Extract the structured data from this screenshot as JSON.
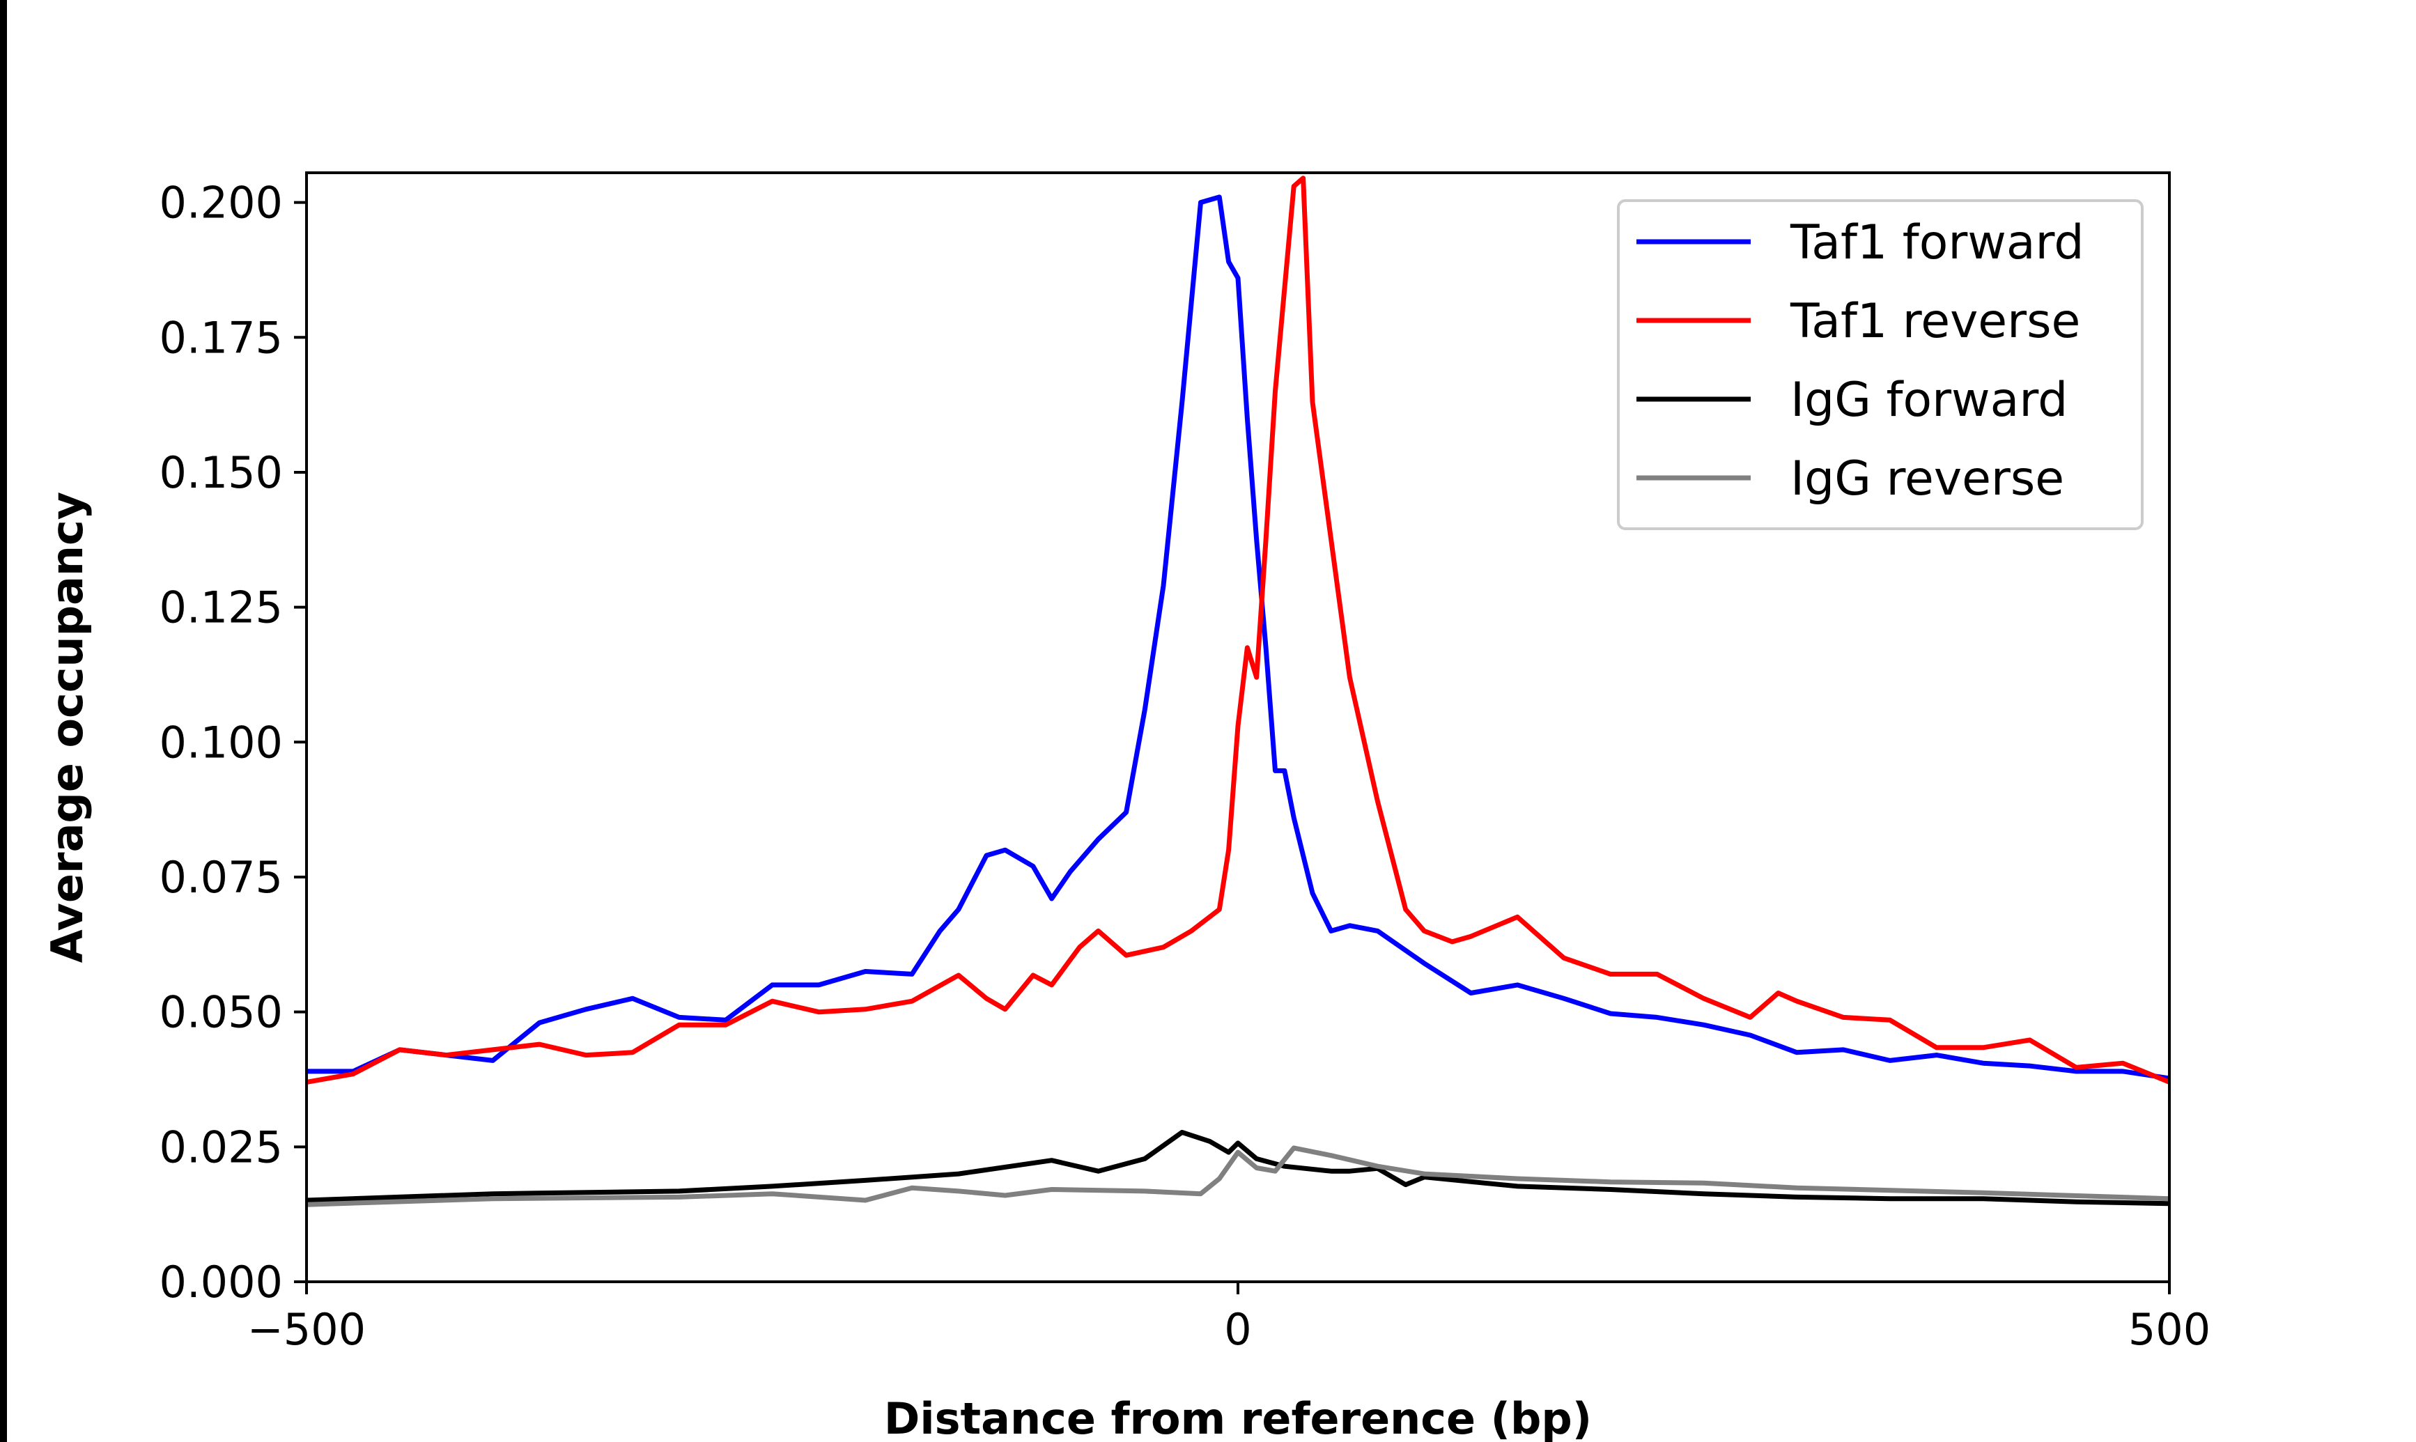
{
  "chart_data": {
    "type": "line",
    "title": "",
    "xlabel": "Distance from reference (bp)",
    "ylabel": "Average occupancy",
    "xlim": [
      -500,
      500
    ],
    "ylim": [
      0,
      0.2055
    ],
    "xticks": [
      -500,
      0,
      500
    ],
    "xtick_labels": [
      "−500",
      "0",
      "500"
    ],
    "yticks": [
      0,
      0.025,
      0.05,
      0.075,
      0.1,
      0.125,
      0.15,
      0.175,
      0.2
    ],
    "ytick_labels": [
      "0.000",
      "0.025",
      "0.050",
      "0.075",
      "0.100",
      "0.125",
      "0.150",
      "0.175",
      "0.200"
    ],
    "grid": false,
    "legend_position": "top-right",
    "series": [
      {
        "name": "Taf1 forward",
        "color": "#0000ff",
        "x": [
          -500,
          -475,
          -450,
          -425,
          -400,
          -375,
          -350,
          -325,
          -300,
          -275,
          -250,
          -225,
          -200,
          -175,
          -160,
          -150,
          -135,
          -125,
          -110,
          -100,
          -90,
          -75,
          -60,
          -50,
          -40,
          -30,
          -20,
          -10,
          -5,
          0,
          5,
          10,
          15,
          20,
          25,
          30,
          40,
          50,
          60,
          75,
          100,
          125,
          150,
          175,
          200,
          225,
          250,
          275,
          300,
          325,
          350,
          375,
          400,
          425,
          450,
          475,
          500
        ],
        "y": [
          0.039,
          0.039,
          0.043,
          0.042,
          0.041,
          0.048,
          0.0505,
          0.0525,
          0.049,
          0.0485,
          0.055,
          0.055,
          0.0575,
          0.057,
          0.065,
          0.069,
          0.079,
          0.08,
          0.077,
          0.071,
          0.076,
          0.082,
          0.087,
          0.106,
          0.129,
          0.163,
          0.2,
          0.201,
          0.189,
          0.186,
          0.16,
          0.1375,
          0.1175,
          0.0947,
          0.0947,
          0.086,
          0.072,
          0.065,
          0.066,
          0.065,
          0.059,
          0.0535,
          0.055,
          0.0525,
          0.0497,
          0.049,
          0.0476,
          0.0457,
          0.0425,
          0.043,
          0.041,
          0.042,
          0.0405,
          0.04,
          0.039,
          0.039,
          0.0377
        ]
      },
      {
        "name": "Taf1 reverse",
        "color": "#ff0000",
        "x": [
          -500,
          -475,
          -450,
          -425,
          -400,
          -375,
          -350,
          -325,
          -300,
          -275,
          -250,
          -225,
          -200,
          -175,
          -150,
          -135,
          -125,
          -110,
          -100,
          -85,
          -75,
          -60,
          -40,
          -25,
          -10,
          -5,
          0,
          5,
          10,
          15,
          20,
          30,
          35,
          40,
          50,
          60,
          75,
          90,
          100,
          115,
          125,
          150,
          175,
          200,
          225,
          250,
          275,
          290,
          300,
          325,
          350,
          375,
          400,
          425,
          450,
          475,
          500
        ],
        "y": [
          0.037,
          0.0385,
          0.043,
          0.042,
          0.043,
          0.044,
          0.042,
          0.0425,
          0.0476,
          0.0476,
          0.052,
          0.05,
          0.0505,
          0.052,
          0.0568,
          0.0525,
          0.0505,
          0.0568,
          0.055,
          0.062,
          0.065,
          0.0605,
          0.062,
          0.065,
          0.069,
          0.08,
          0.103,
          0.1175,
          0.112,
          0.1375,
          0.165,
          0.203,
          0.2045,
          0.163,
          0.1375,
          0.112,
          0.089,
          0.069,
          0.065,
          0.063,
          0.064,
          0.0676,
          0.06,
          0.057,
          0.057,
          0.0525,
          0.049,
          0.0535,
          0.052,
          0.049,
          0.0485,
          0.0434,
          0.0434,
          0.0448,
          0.0397,
          0.0405,
          0.037
        ]
      },
      {
        "name": "IgG forward",
        "color": "#000000",
        "x": [
          -500,
          -400,
          -300,
          -250,
          -200,
          -150,
          -100,
          -75,
          -50,
          -30,
          -15,
          -5,
          0,
          10,
          25,
          50,
          60,
          75,
          90,
          100,
          150,
          200,
          250,
          300,
          350,
          400,
          450,
          500
        ],
        "y": [
          0.0151,
          0.0163,
          0.0168,
          0.0177,
          0.0188,
          0.02,
          0.0225,
          0.0205,
          0.0228,
          0.0277,
          0.026,
          0.024,
          0.0257,
          0.0228,
          0.0214,
          0.0205,
          0.0205,
          0.021,
          0.018,
          0.0194,
          0.0177,
          0.0171,
          0.0163,
          0.0157,
          0.0154,
          0.0154,
          0.0148,
          0.0145
        ]
      },
      {
        "name": "IgG reverse",
        "color": "#808080",
        "x": [
          -500,
          -400,
          -300,
          -250,
          -200,
          -175,
          -150,
          -125,
          -100,
          -50,
          -20,
          -10,
          0,
          10,
          20,
          30,
          50,
          75,
          100,
          150,
          200,
          250,
          300,
          400,
          500
        ],
        "y": [
          0.0143,
          0.0154,
          0.0157,
          0.0163,
          0.0151,
          0.0174,
          0.0168,
          0.016,
          0.0171,
          0.0168,
          0.0163,
          0.0191,
          0.024,
          0.0211,
          0.0205,
          0.0248,
          0.0234,
          0.0214,
          0.02,
          0.0191,
          0.0185,
          0.0183,
          0.0174,
          0.0165,
          0.0154
        ]
      }
    ]
  }
}
